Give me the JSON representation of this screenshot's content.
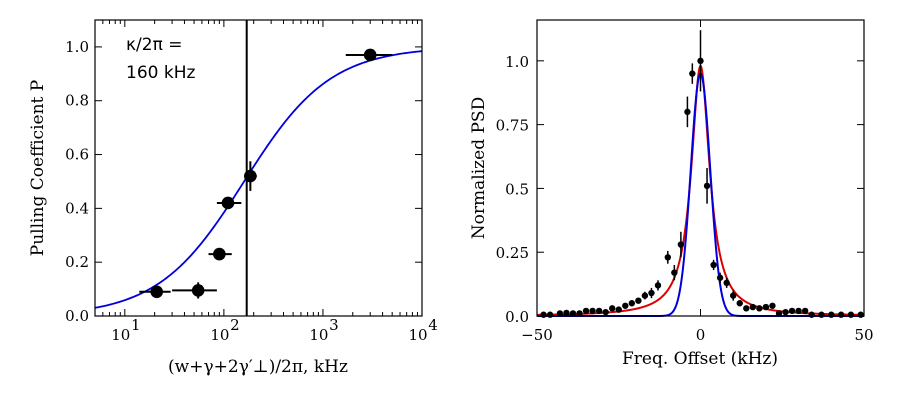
{
  "chart_data": [
    {
      "type": "scatter",
      "xscale": "log",
      "xlim": [
        5,
        10000
      ],
      "ylim": [
        0.0,
        1.1
      ],
      "xlabel": "(w+γ+2γ′⊥)/2π, kHz",
      "ylabel": "Pulling Coefficient P",
      "x_ticks": [
        {
          "value": 10,
          "base": "10",
          "exp": "1"
        },
        {
          "value": 100,
          "base": "10",
          "exp": "2"
        },
        {
          "value": 1000,
          "base": "10",
          "exp": "3"
        },
        {
          "value": 10000,
          "base": "10",
          "exp": "4"
        }
      ],
      "y_ticks": [
        "0.0",
        "0.2",
        "0.4",
        "0.6",
        "0.8",
        "1.0"
      ],
      "annotation_lines": [
        "κ/2π =",
        "160 kHz"
      ],
      "vline_x": 170,
      "fit_curve": {
        "color": "#0000dd",
        "kappa_khz": 160
      },
      "series": [
        {
          "color": "#000000",
          "points": [
            {
              "x": 21,
              "y": 0.09,
              "xerr": [
                14,
                29
              ],
              "yerr": 0.0
            },
            {
              "x": 55,
              "y": 0.095,
              "xerr": [
                30,
                85
              ],
              "yerr": 0.03
            },
            {
              "x": 90,
              "y": 0.23,
              "xerr": [
                70,
                120
              ],
              "yerr": 0.02
            },
            {
              "x": 110,
              "y": 0.42,
              "xerr": [
                85,
                150
              ],
              "yerr": 0.0
            },
            {
              "x": 185,
              "y": 0.52,
              "xerr": [
                160,
                215
              ],
              "yerr": 0.055
            },
            {
              "x": 3000,
              "y": 0.97,
              "xerr": [
                1700,
                5000
              ],
              "yerr": 0.0
            }
          ]
        }
      ]
    },
    {
      "type": "line",
      "xlim": [
        -50,
        50
      ],
      "ylim": [
        0.0,
        1.16
      ],
      "xlabel": "Freq. Offset (kHz)",
      "ylabel": "Normalized PSD",
      "x_ticks": [
        "-50",
        "0",
        "50"
      ],
      "y_ticks": [
        "0.0",
        "0.25",
        "0.5",
        "0.75",
        "1.0"
      ],
      "curves": [
        {
          "color": "#dd0000",
          "shape": "lorentzian",
          "amplitude": 0.98,
          "hwhm_khz": 3.4
        },
        {
          "color": "#0000dd",
          "shape": "gaussian",
          "amplitude": 0.95,
          "fwhm_khz": 7.0
        }
      ],
      "series": [
        {
          "color": "#000000",
          "points": [
            [
              -48,
              0.005,
              0.005
            ],
            [
              -46,
              0.005,
              0.005
            ],
            [
              -43,
              0.01,
              0.005
            ],
            [
              -41,
              0.012,
              0.005
            ],
            [
              -39,
              0.01,
              0.005
            ],
            [
              -37,
              0.01,
              0.005
            ],
            [
              -35,
              0.02,
              0.01
            ],
            [
              -33,
              0.02,
              0.01
            ],
            [
              -31,
              0.02,
              0.01
            ],
            [
              -29,
              0.015,
              0.01
            ],
            [
              -27,
              0.03,
              0.01
            ],
            [
              -25,
              0.025,
              0.01
            ],
            [
              -23,
              0.04,
              0.01
            ],
            [
              -21,
              0.05,
              0.01
            ],
            [
              -19,
              0.06,
              0.01
            ],
            [
              -17,
              0.08,
              0.015
            ],
            [
              -15,
              0.09,
              0.02
            ],
            [
              -13,
              0.12,
              0.02
            ],
            [
              -10,
              0.23,
              0.025
            ],
            [
              -8,
              0.17,
              0.03
            ],
            [
              -6,
              0.28,
              0.05
            ],
            [
              -4,
              0.8,
              0.06
            ],
            [
              -2.5,
              0.95,
              0.04
            ],
            [
              0,
              1.0,
              0.12
            ],
            [
              2,
              0.51,
              0.07
            ],
            [
              4,
              0.2,
              0.02
            ],
            [
              6,
              0.15,
              0.02
            ],
            [
              8,
              0.13,
              0.02
            ],
            [
              10,
              0.08,
              0.02
            ],
            [
              12,
              0.05,
              0.01
            ],
            [
              14,
              0.03,
              0.01
            ],
            [
              16,
              0.035,
              0.01
            ],
            [
              18,
              0.03,
              0.01
            ],
            [
              20,
              0.035,
              0.01
            ],
            [
              22,
              0.04,
              0.01
            ],
            [
              24,
              0.01,
              0.005
            ],
            [
              26,
              0.015,
              0.005
            ],
            [
              28,
              0.02,
              0.005
            ],
            [
              30,
              0.02,
              0.005
            ],
            [
              32,
              0.02,
              0.005
            ],
            [
              34,
              0.005,
              0.005
            ],
            [
              37,
              0.005,
              0.005
            ],
            [
              40,
              0.005,
              0.005
            ],
            [
              43,
              0.005,
              0.005
            ],
            [
              46,
              0.005,
              0.005
            ],
            [
              49,
              0.005,
              0.005
            ]
          ]
        }
      ]
    }
  ]
}
